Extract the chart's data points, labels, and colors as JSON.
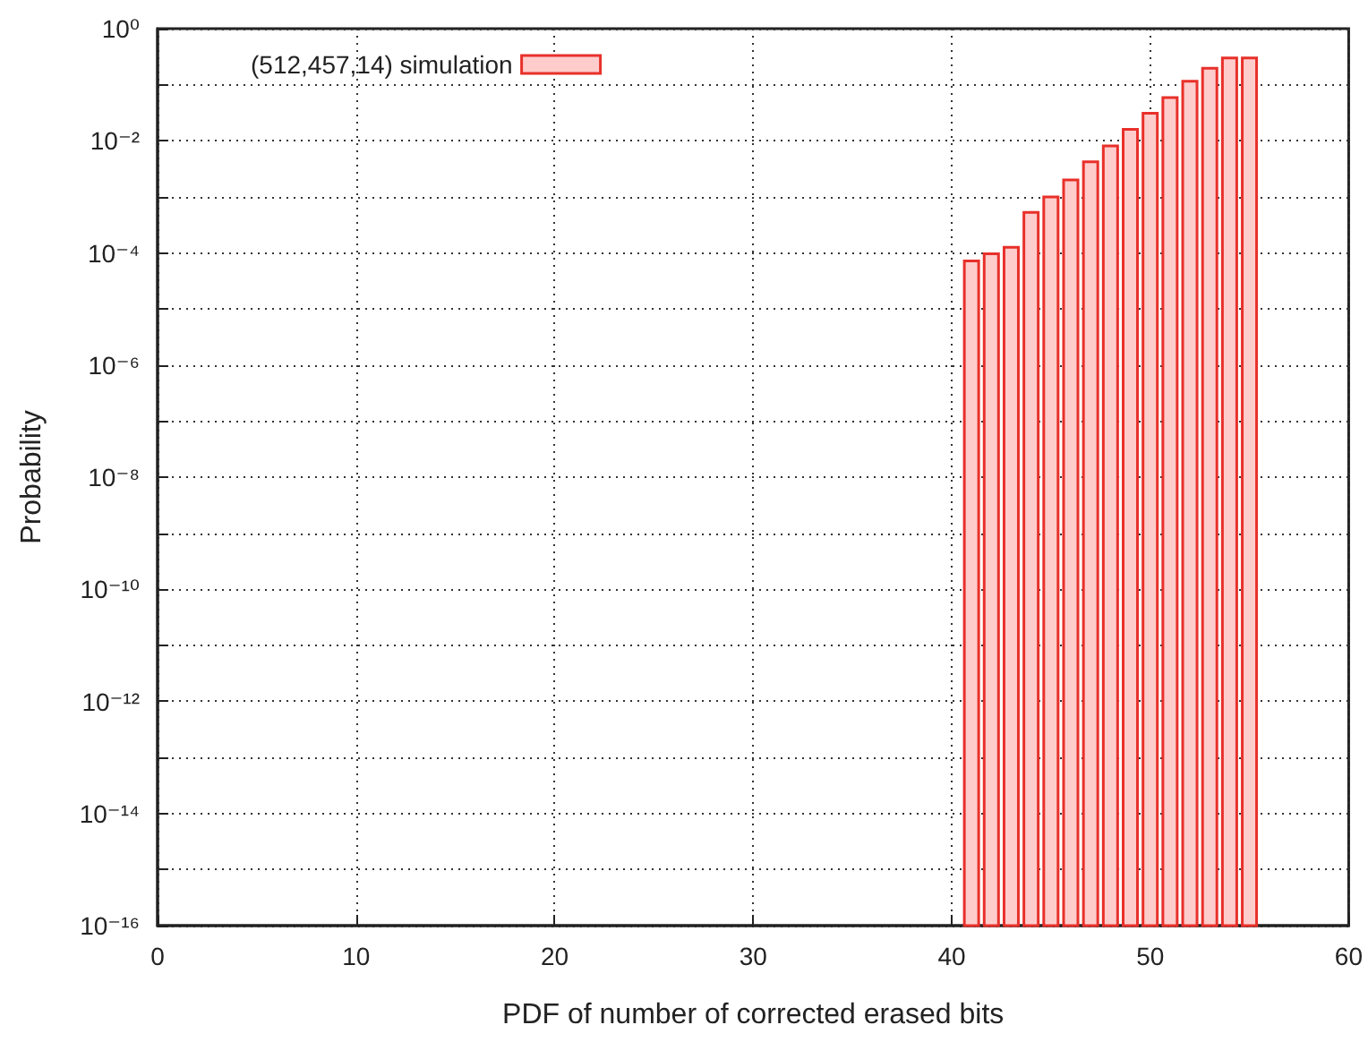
{
  "chart_data": {
    "type": "bar",
    "xlabel": "PDF of number of corrected erased bits",
    "ylabel": "Probability",
    "x": [
      41,
      42,
      43,
      44,
      45,
      46,
      47,
      48,
      49,
      50,
      51,
      52,
      53,
      54,
      55
    ],
    "series": [
      {
        "name": "(512,457,14) simulation",
        "color": "#ffcccc",
        "values": [
          7.2e-05,
          9.6e-05,
          0.000126,
          0.00053,
          0.001,
          0.002,
          0.0042,
          0.0081,
          0.016,
          0.031,
          0.059,
          0.115,
          0.197,
          0.3,
          0.3
        ]
      }
    ],
    "log": "y",
    "xlim": [
      0,
      60
    ],
    "xticks": [
      0,
      10,
      20,
      30,
      40,
      50,
      60
    ],
    "ylim": [
      1e-16,
      1
    ],
    "yticks": [
      {
        "value": 1e-16,
        "label": "10⁻¹⁶"
      },
      {
        "value": 1e-15,
        "label": null
      },
      {
        "value": 1e-14,
        "label": "10⁻¹⁴"
      },
      {
        "value": 1e-13,
        "label": null
      },
      {
        "value": 1e-12,
        "label": "10⁻¹²"
      },
      {
        "value": 1e-11,
        "label": null
      },
      {
        "value": 1e-10,
        "label": "10⁻¹⁰"
      },
      {
        "value": 1e-09,
        "label": null
      },
      {
        "value": 1e-08,
        "label": "10⁻⁸"
      },
      {
        "value": 1e-07,
        "label": null
      },
      {
        "value": 1e-06,
        "label": "10⁻⁶"
      },
      {
        "value": 1e-05,
        "label": null
      },
      {
        "value": 0.0001,
        "label": "10⁻⁴"
      },
      {
        "value": 0.001,
        "label": null
      },
      {
        "value": 0.01,
        "label": "10⁻²"
      },
      {
        "value": 0.1,
        "label": null
      },
      {
        "value": 1,
        "label": "10⁰"
      }
    ],
    "grid": true,
    "legend": "top left"
  }
}
